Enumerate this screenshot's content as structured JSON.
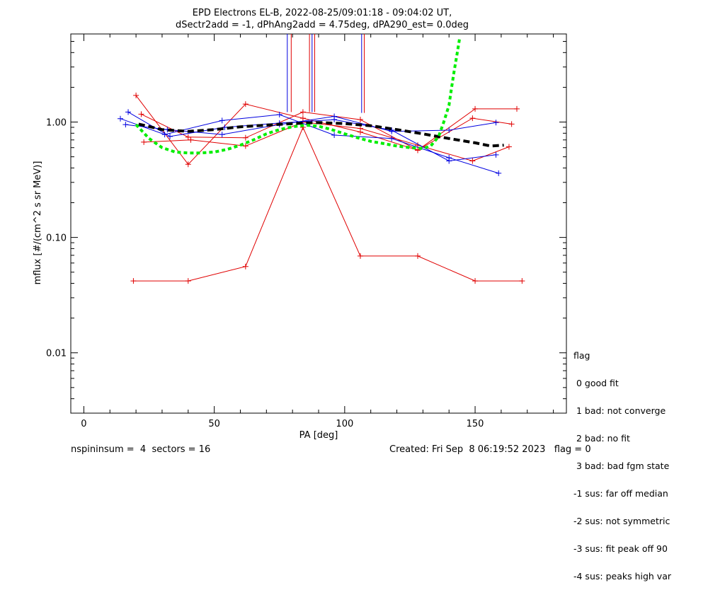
{
  "chart_data": {
    "type": "line",
    "title": "EPD Electrons EL-B, 2022-08-25/09:01:18 - 09:04:02 UT,",
    "subtitle": "dSectr2add = -1, dPhAng2add = 4.75deg, dPA290_est=   0.0deg",
    "xlabel": "PA [deg]",
    "ylabel": "mflux [#/(cm^2 s sr MeV)]",
    "xlim": [
      -5,
      185
    ],
    "ylim": [
      0.003,
      5.8
    ],
    "yscale": "log",
    "xticks": [
      "0",
      "50",
      "100",
      "150"
    ],
    "xtick_values": [
      0,
      50,
      100,
      150
    ],
    "yticks": [
      "0.01",
      "0.10",
      "1.00"
    ],
    "ytick_values": [
      0.01,
      0.1,
      1.0
    ],
    "colors": {
      "red": "#e00000",
      "blue": "#0000e0",
      "black": "#000000",
      "green": "#00ee00"
    },
    "series": [
      {
        "color": "red",
        "x": [
          19,
          40,
          62,
          84,
          106,
          128,
          150,
          168
        ],
        "y": [
          0.042,
          0.042,
          0.056,
          0.9,
          0.069,
          0.069,
          0.042,
          0.042
        ]
      },
      {
        "color": "red",
        "x": [
          20,
          40,
          62,
          84,
          106,
          128,
          150,
          166
        ],
        "y": [
          1.7,
          0.43,
          1.43,
          1.08,
          0.82,
          0.57,
          1.3,
          1.3
        ]
      },
      {
        "color": "red",
        "x": [
          22,
          40,
          62,
          84,
          106,
          128,
          149,
          164
        ],
        "y": [
          1.17,
          0.74,
          0.73,
          1.22,
          1.05,
          0.57,
          1.08,
          0.96
        ]
      },
      {
        "color": "red",
        "x": [
          23,
          41,
          62,
          84,
          106,
          128,
          149,
          163
        ],
        "y": [
          0.67,
          0.7,
          0.62,
          1.0,
          0.88,
          0.63,
          0.46,
          0.61
        ]
      },
      {
        "color": "blue",
        "x": [
          14,
          31,
          53,
          75,
          96,
          118,
          140,
          159
        ],
        "y": [
          1.07,
          0.78,
          1.03,
          1.16,
          0.77,
          0.72,
          0.49,
          0.36
        ]
      },
      {
        "color": "blue",
        "x": [
          16,
          32,
          53,
          75,
          96,
          118,
          140,
          158
        ],
        "y": [
          0.95,
          0.86,
          0.78,
          0.95,
          1.12,
          0.83,
          0.85,
          0.99
        ]
      },
      {
        "color": "blue",
        "x": [
          17,
          33,
          54,
          75,
          96,
          118,
          140,
          158
        ],
        "y": [
          1.22,
          0.75,
          0.9,
          0.98,
          1.05,
          0.85,
          0.46,
          0.52
        ]
      },
      {
        "color": "red",
        "style": "vertical-lines",
        "x": [
          79.5,
          86.5,
          88.5,
          107.5
        ],
        "y_bottom": [
          1.22,
          1.22,
          1.22,
          1.2
        ],
        "y_top": 5.8
      },
      {
        "color": "blue",
        "style": "vertical-lines",
        "x": [
          78,
          87.5,
          106.5
        ],
        "y_bottom": [
          1.22,
          1.22,
          1.2
        ],
        "y_top": 5.8
      },
      {
        "color": "black",
        "style": "dashed",
        "x": [
          21,
          30,
          40,
          50,
          60,
          70,
          80,
          90,
          100,
          110,
          120,
          130,
          140,
          150,
          156,
          161
        ],
        "y": [
          0.96,
          0.86,
          0.83,
          0.86,
          0.91,
          0.94,
          0.97,
          0.99,
          0.97,
          0.93,
          0.86,
          0.79,
          0.72,
          0.66,
          0.62,
          0.63
        ]
      },
      {
        "color": "green",
        "style": "dotted",
        "x": [
          20,
          25,
          30,
          35,
          40,
          45,
          50,
          55,
          60,
          65,
          70,
          75,
          80,
          85,
          90,
          95,
          100,
          105,
          110,
          115,
          120,
          125,
          130,
          133,
          136,
          138,
          140,
          141,
          142,
          143,
          144
        ],
        "y": [
          0.95,
          0.72,
          0.6,
          0.55,
          0.54,
          0.54,
          0.55,
          0.58,
          0.63,
          0.7,
          0.79,
          0.86,
          0.91,
          0.94,
          0.92,
          0.86,
          0.79,
          0.73,
          0.68,
          0.65,
          0.62,
          0.6,
          0.59,
          0.62,
          0.75,
          1.0,
          1.4,
          2.0,
          2.8,
          3.8,
          5.2
        ]
      }
    ]
  },
  "legend": {
    "title": "flag",
    "items": [
      " 0 good fit",
      " 1 bad: not converge",
      " 2 bad: no fit",
      " 3 bad: bad fgm state",
      "-1 sus: far off median",
      "-2 sus: not symmetric",
      "-3 sus: fit peak off 90",
      "-4 sus: peaks high var"
    ]
  },
  "footer": {
    "left": "nspininsum =  4  sectors = 16",
    "right": "Created: Fri Sep  8 06:19:52 2023   flag = 0"
  }
}
